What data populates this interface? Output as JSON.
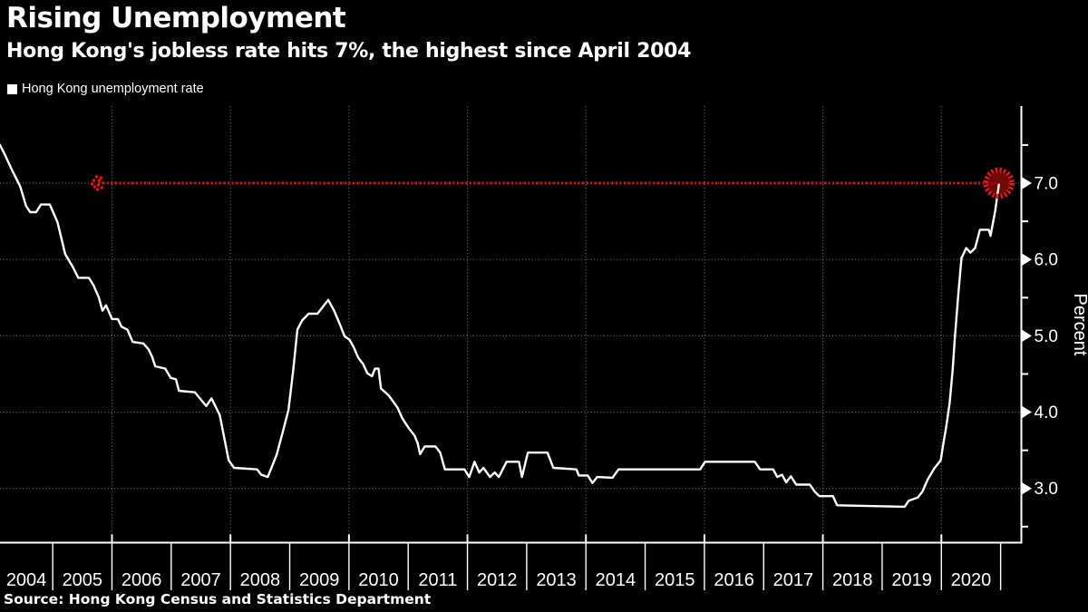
{
  "header": {
    "title": "Rising Unemployment",
    "subtitle": "Hong Kong's jobless rate hits 7%, the highest since April 2004"
  },
  "legend": {
    "swatch_color": "#ffffff",
    "label": "Hong Kong unemployment rate"
  },
  "source": {
    "text": "Source: Hong Kong Census and Statistics Department"
  },
  "colors": {
    "background": "#000000",
    "text": "#ffffff",
    "series_line": "#ffffff",
    "grid": "#6f6f6f",
    "axis": "#ffffff",
    "annotation_red": "#e31111",
    "circle_ring_red": "#f21515",
    "circle_fill_red": "#8d0909"
  },
  "chart_data": {
    "type": "line",
    "title": "Rising Unemployment",
    "subtitle": "Hong Kong's jobless rate hits 7%, the highest since April 2004",
    "ylabel": "Percent",
    "legend_position": "top-left",
    "grid": "dotted",
    "ylim": [
      2.29,
      8.01
    ],
    "xlim": [
      2004.11,
      2021.35
    ],
    "y_ticks": [
      3,
      4,
      5,
      6,
      7
    ],
    "y_tick_labels": [
      "3.0",
      "4.0",
      "5.0",
      "6.0",
      "7.0"
    ],
    "y_minor_ticks": [
      2.5,
      3.5,
      4.5,
      5.5,
      6.5,
      7.5
    ],
    "x_year_labels": [
      "2004",
      "2005",
      "2006",
      "2007",
      "2008",
      "2009",
      "2010",
      "2011",
      "2012",
      "2013",
      "2014",
      "2015",
      "2016",
      "2017",
      "2018",
      "2019",
      "2020"
    ],
    "x_gridline_years": [
      2006,
      2008,
      2010,
      2012,
      2014,
      2016,
      2018,
      2020
    ],
    "annotation": {
      "type": "hline-callout",
      "y": 7.0,
      "x_start": 2005.77,
      "x_end": 2020.97,
      "style": "dotted",
      "end_marker": "dashed-circle"
    },
    "series": [
      {
        "name": "Hong Kong unemployment rate",
        "points": [
          [
            2004.11,
            7.5
          ],
          [
            2004.2,
            7.36
          ],
          [
            2004.32,
            7.16
          ],
          [
            2004.45,
            6.96
          ],
          [
            2004.55,
            6.7
          ],
          [
            2004.62,
            6.62
          ],
          [
            2004.72,
            6.62
          ],
          [
            2004.8,
            6.72
          ],
          [
            2004.95,
            6.72
          ],
          [
            2005.08,
            6.49
          ],
          [
            2005.21,
            6.07
          ],
          [
            2005.34,
            5.9
          ],
          [
            2005.43,
            5.76
          ],
          [
            2005.61,
            5.76
          ],
          [
            2005.69,
            5.66
          ],
          [
            2005.78,
            5.5
          ],
          [
            2005.84,
            5.33
          ],
          [
            2005.9,
            5.4
          ],
          [
            2006.0,
            5.22
          ],
          [
            2006.1,
            5.22
          ],
          [
            2006.16,
            5.12
          ],
          [
            2006.26,
            5.08
          ],
          [
            2006.35,
            4.92
          ],
          [
            2006.53,
            4.9
          ],
          [
            2006.62,
            4.82
          ],
          [
            2006.68,
            4.72
          ],
          [
            2006.73,
            4.6
          ],
          [
            2006.9,
            4.57
          ],
          [
            2006.99,
            4.45
          ],
          [
            2007.08,
            4.43
          ],
          [
            2007.13,
            4.28
          ],
          [
            2007.4,
            4.26
          ],
          [
            2007.59,
            4.08
          ],
          [
            2007.68,
            4.18
          ],
          [
            2007.82,
            3.96
          ],
          [
            2007.97,
            3.37
          ],
          [
            2008.06,
            3.27
          ],
          [
            2008.45,
            3.25
          ],
          [
            2008.52,
            3.18
          ],
          [
            2008.63,
            3.15
          ],
          [
            2008.67,
            3.23
          ],
          [
            2008.78,
            3.44
          ],
          [
            2008.9,
            3.79
          ],
          [
            2008.98,
            4.03
          ],
          [
            2009.06,
            4.55
          ],
          [
            2009.13,
            5.08
          ],
          [
            2009.21,
            5.2
          ],
          [
            2009.32,
            5.29
          ],
          [
            2009.47,
            5.29
          ],
          [
            2009.56,
            5.38
          ],
          [
            2009.65,
            5.47
          ],
          [
            2009.75,
            5.33
          ],
          [
            2009.82,
            5.2
          ],
          [
            2009.93,
            4.99
          ],
          [
            2010.01,
            4.95
          ],
          [
            2010.08,
            4.85
          ],
          [
            2010.16,
            4.71
          ],
          [
            2010.24,
            4.63
          ],
          [
            2010.31,
            4.51
          ],
          [
            2010.39,
            4.47
          ],
          [
            2010.44,
            4.57
          ],
          [
            2010.5,
            4.57
          ],
          [
            2010.54,
            4.31
          ],
          [
            2010.67,
            4.22
          ],
          [
            2010.82,
            4.06
          ],
          [
            2010.9,
            3.92
          ],
          [
            2011.0,
            3.8
          ],
          [
            2011.11,
            3.69
          ],
          [
            2011.16,
            3.59
          ],
          [
            2011.2,
            3.45
          ],
          [
            2011.28,
            3.55
          ],
          [
            2011.46,
            3.55
          ],
          [
            2011.54,
            3.47
          ],
          [
            2011.62,
            3.25
          ],
          [
            2011.95,
            3.25
          ],
          [
            2012.03,
            3.15
          ],
          [
            2012.12,
            3.35
          ],
          [
            2012.2,
            3.21
          ],
          [
            2012.27,
            3.27
          ],
          [
            2012.38,
            3.15
          ],
          [
            2012.46,
            3.21
          ],
          [
            2012.53,
            3.15
          ],
          [
            2012.66,
            3.35
          ],
          [
            2012.87,
            3.35
          ],
          [
            2012.92,
            3.15
          ],
          [
            2013.02,
            3.47
          ],
          [
            2013.35,
            3.47
          ],
          [
            2013.45,
            3.27
          ],
          [
            2013.84,
            3.25
          ],
          [
            2013.88,
            3.17
          ],
          [
            2014.03,
            3.17
          ],
          [
            2014.11,
            3.07
          ],
          [
            2014.19,
            3.15
          ],
          [
            2014.45,
            3.14
          ],
          [
            2014.55,
            3.25
          ],
          [
            2015.93,
            3.25
          ],
          [
            2016.01,
            3.35
          ],
          [
            2016.85,
            3.35
          ],
          [
            2016.94,
            3.25
          ],
          [
            2017.16,
            3.25
          ],
          [
            2017.23,
            3.15
          ],
          [
            2017.31,
            3.18
          ],
          [
            2017.38,
            3.08
          ],
          [
            2017.46,
            3.16
          ],
          [
            2017.55,
            3.05
          ],
          [
            2017.78,
            3.05
          ],
          [
            2017.86,
            2.96
          ],
          [
            2017.94,
            2.9
          ],
          [
            2018.17,
            2.9
          ],
          [
            2018.24,
            2.78
          ],
          [
            2019.38,
            2.76
          ],
          [
            2019.45,
            2.84
          ],
          [
            2019.6,
            2.88
          ],
          [
            2019.68,
            2.96
          ],
          [
            2019.77,
            3.12
          ],
          [
            2019.88,
            3.26
          ],
          [
            2019.99,
            3.37
          ],
          [
            2020.03,
            3.57
          ],
          [
            2020.08,
            3.8
          ],
          [
            2020.14,
            4.12
          ],
          [
            2020.19,
            4.55
          ],
          [
            2020.23,
            5.0
          ],
          [
            2020.29,
            5.58
          ],
          [
            2020.34,
            6.02
          ],
          [
            2020.42,
            6.15
          ],
          [
            2020.49,
            6.09
          ],
          [
            2020.57,
            6.15
          ],
          [
            2020.65,
            6.39
          ],
          [
            2020.8,
            6.39
          ],
          [
            2020.83,
            6.31
          ],
          [
            2020.91,
            6.64
          ],
          [
            2020.97,
            6.98
          ]
        ]
      }
    ]
  }
}
